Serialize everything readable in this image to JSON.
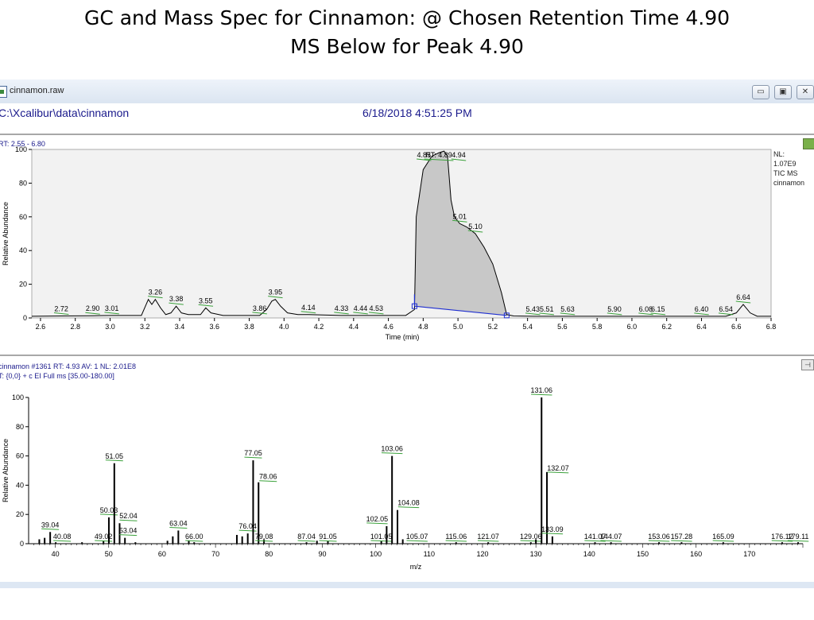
{
  "slide": {
    "title_line1": "GC and Mass Spec for Cinnamon: @ Chosen Retention Time 4.90",
    "title_line2": "MS Below for Peak 4.90"
  },
  "window": {
    "title": "cinnamon.raw",
    "path": "C:\\Xcalibur\\data\\cinnamon",
    "datetime": "6/18/2018 4:51:25 PM",
    "buttons": [
      "minimize",
      "maximize",
      "close"
    ]
  },
  "colors": {
    "trace": "#000000",
    "label_underline": "#3aa13a",
    "baseline": "#1f2fd0",
    "fill": "#c8c8c8",
    "text_blue": "#1a1a8c",
    "plot_bg": "#f2f2f2"
  },
  "chart_data": [
    {
      "type": "line",
      "header": "RT: 2.55 - 6.80",
      "side_labels": [
        "NL:",
        "1.07E9",
        "TIC  MS",
        "cinnamon"
      ],
      "xlabel": "Time (min)",
      "ylabel": "Relative Abundance",
      "xlim": [
        2.55,
        6.8
      ],
      "ylim": [
        0,
        100
      ],
      "xticks": [
        2.6,
        2.8,
        3.0,
        3.2,
        3.4,
        3.6,
        3.8,
        4.0,
        4.2,
        4.4,
        4.6,
        4.8,
        5.0,
        5.2,
        5.4,
        5.6,
        5.8,
        6.0,
        6.2,
        6.4,
        6.6,
        6.8
      ],
      "yticks": [
        0,
        20,
        40,
        60,
        80,
        100
      ],
      "x": [
        2.55,
        2.72,
        2.9,
        3.01,
        3.18,
        3.22,
        3.24,
        3.26,
        3.29,
        3.32,
        3.35,
        3.38,
        3.41,
        3.45,
        3.52,
        3.55,
        3.58,
        3.65,
        3.86,
        3.9,
        3.93,
        3.95,
        3.98,
        4.02,
        4.08,
        4.14,
        4.33,
        4.44,
        4.53,
        4.7,
        4.75,
        4.76,
        4.8,
        4.85,
        4.89,
        4.92,
        4.94,
        4.96,
        4.98,
        5.01,
        5.05,
        5.1,
        5.15,
        5.2,
        5.25,
        5.28,
        5.32,
        5.43,
        5.51,
        5.63,
        5.9,
        6.08,
        6.15,
        6.4,
        6.54,
        6.6,
        6.64,
        6.68,
        6.72,
        6.8
      ],
      "y": [
        1,
        1.2,
        1.3,
        1.5,
        1.5,
        11,
        8,
        11,
        6,
        2,
        3,
        7,
        3,
        2,
        2,
        6,
        3,
        1.5,
        1.5,
        5,
        10,
        11,
        7,
        3,
        2,
        2,
        1.5,
        1.5,
        1.5,
        1.5,
        5,
        60,
        88,
        96,
        98,
        99,
        96,
        70,
        60,
        56,
        54,
        50,
        42,
        32,
        15,
        2,
        1.2,
        1,
        1,
        1,
        1,
        1,
        1,
        1,
        1,
        3,
        8,
        3,
        1,
        1
      ],
      "fill_range": [
        4.75,
        5.28
      ],
      "baseline_markers": [
        [
          4.75,
          7
        ],
        [
          5.28,
          1.5
        ]
      ],
      "peak_labels": [
        {
          "text": "2.72",
          "x": 2.72,
          "y": 1.2
        },
        {
          "text": "2.90",
          "x": 2.9,
          "y": 1.3
        },
        {
          "text": "3.01",
          "x": 3.01,
          "y": 1.5
        },
        {
          "text": "3.26",
          "x": 3.26,
          "y": 11
        },
        {
          "text": "3.38",
          "x": 3.38,
          "y": 7
        },
        {
          "text": "3.55",
          "x": 3.55,
          "y": 6
        },
        {
          "text": "3.86",
          "x": 3.86,
          "y": 1.5
        },
        {
          "text": "3.95",
          "x": 3.95,
          "y": 11
        },
        {
          "text": "4.14",
          "x": 4.14,
          "y": 2
        },
        {
          "text": "4.33",
          "x": 4.33,
          "y": 1.5
        },
        {
          "text": "4.44",
          "x": 4.44,
          "y": 1.5
        },
        {
          "text": "4.53",
          "x": 4.53,
          "y": 1.5
        },
        {
          "text": "4.85",
          "x": 4.85,
          "y": 96
        },
        {
          "text": "RT: 4.89",
          "x": 4.89,
          "y": 99
        },
        {
          "text": "4.94",
          "x": 4.94,
          "y": 98
        },
        {
          "text": "5.01",
          "x": 5.01,
          "y": 56
        },
        {
          "text": "5.10",
          "x": 5.1,
          "y": 50
        },
        {
          "text": "5.43",
          "x": 5.43,
          "y": 1
        },
        {
          "text": "5.51",
          "x": 5.51,
          "y": 1
        },
        {
          "text": "5.63",
          "x": 5.63,
          "y": 1
        },
        {
          "text": "5.90",
          "x": 5.9,
          "y": 1
        },
        {
          "text": "6.08",
          "x": 6.08,
          "y": 1
        },
        {
          "text": "6.15",
          "x": 6.15,
          "y": 1
        },
        {
          "text": "6.40",
          "x": 6.4,
          "y": 1
        },
        {
          "text": "6.54",
          "x": 6.54,
          "y": 1
        },
        {
          "text": "6.64",
          "x": 6.64,
          "y": 8
        }
      ]
    },
    {
      "type": "bar",
      "header_line1": "cinnamon #1361  RT: 4.93  AV: 1  NL: 2.01E8",
      "header_line2": "T: {0,0}  + c EI Full ms [35.00-180.00]",
      "xlabel": "m/z",
      "ylabel": "Relative Abundance",
      "xlim": [
        35,
        180
      ],
      "ylim": [
        0,
        100
      ],
      "xticks": [
        40,
        50,
        60,
        70,
        80,
        90,
        100,
        110,
        120,
        130,
        140,
        150,
        160,
        170
      ],
      "yticks": [
        0,
        20,
        40,
        60,
        80,
        100
      ],
      "peaks": [
        {
          "mz": 37.0,
          "y": 3
        },
        {
          "mz": 38.0,
          "y": 4
        },
        {
          "mz": 39.04,
          "y": 8,
          "label": "39.04"
        },
        {
          "mz": 40.08,
          "y": 1,
          "label": "40.08"
        },
        {
          "mz": 45.0,
          "y": 1
        },
        {
          "mz": 49.02,
          "y": 2,
          "label": "49.02"
        },
        {
          "mz": 50.03,
          "y": 18,
          "label": "50.03"
        },
        {
          "mz": 51.05,
          "y": 55,
          "label": "51.05"
        },
        {
          "mz": 52.04,
          "y": 14,
          "label": "52.04"
        },
        {
          "mz": 53.04,
          "y": 4,
          "label": "53.04"
        },
        {
          "mz": 55.0,
          "y": 1
        },
        {
          "mz": 61.0,
          "y": 2
        },
        {
          "mz": 62.0,
          "y": 5
        },
        {
          "mz": 63.04,
          "y": 9,
          "label": "63.04"
        },
        {
          "mz": 65.0,
          "y": 2
        },
        {
          "mz": 66.0,
          "y": 1,
          "label": "66.00"
        },
        {
          "mz": 74.0,
          "y": 6
        },
        {
          "mz": 75.0,
          "y": 5
        },
        {
          "mz": 76.04,
          "y": 7,
          "label": "76.04"
        },
        {
          "mz": 77.05,
          "y": 57,
          "label": "77.05"
        },
        {
          "mz": 78.06,
          "y": 42,
          "label": "78.06"
        },
        {
          "mz": 79.08,
          "y": 3,
          "label": "79.08"
        },
        {
          "mz": 87.04,
          "y": 1,
          "label": "87.04"
        },
        {
          "mz": 89.0,
          "y": 2
        },
        {
          "mz": 91.05,
          "y": 2,
          "label": "91.05"
        },
        {
          "mz": 101.05,
          "y": 2,
          "label": "101.05"
        },
        {
          "mz": 102.05,
          "y": 12,
          "label": "102.05"
        },
        {
          "mz": 103.06,
          "y": 60,
          "label": "103.06"
        },
        {
          "mz": 104.08,
          "y": 23,
          "label": "104.08"
        },
        {
          "mz": 105.07,
          "y": 3,
          "label": "105.07"
        },
        {
          "mz": 115.06,
          "y": 1,
          "label": "115.06"
        },
        {
          "mz": 121.07,
          "y": 1,
          "label": "121.07"
        },
        {
          "mz": 129.06,
          "y": 1,
          "label": "129.06"
        },
        {
          "mz": 130.0,
          "y": 3
        },
        {
          "mz": 131.06,
          "y": 100,
          "label": "131.06"
        },
        {
          "mz": 132.07,
          "y": 49,
          "label": "132.07"
        },
        {
          "mz": 133.09,
          "y": 5,
          "label": "133.09"
        },
        {
          "mz": 141.07,
          "y": 1,
          "label": "141.07"
        },
        {
          "mz": 144.07,
          "y": 1,
          "label": "144.07"
        },
        {
          "mz": 153.06,
          "y": 1,
          "label": "153.06"
        },
        {
          "mz": 157.28,
          "y": 1,
          "label": "157.28"
        },
        {
          "mz": 165.09,
          "y": 1,
          "label": "165.09"
        },
        {
          "mz": 176.12,
          "y": 1,
          "label": "176.12"
        },
        {
          "mz": 179.11,
          "y": 1,
          "label": "179.11"
        }
      ]
    }
  ]
}
